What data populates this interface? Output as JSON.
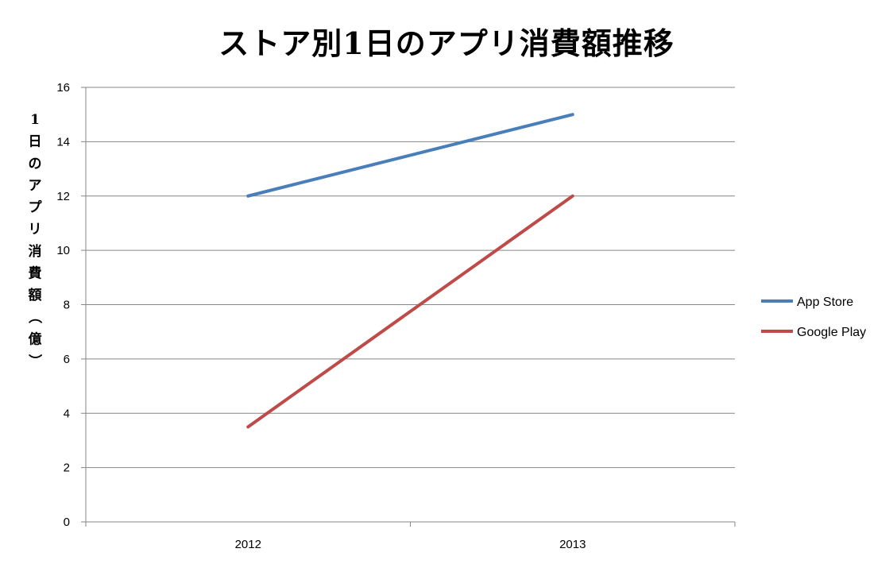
{
  "chart_data": {
    "type": "line",
    "title": "ストア別1日のアプリ消費額推移",
    "xlabel": "",
    "ylabel": "1日のアプリ消費額（億）",
    "categories": [
      "2012",
      "2013"
    ],
    "ylim": [
      0,
      16
    ],
    "yticks": [
      0,
      2,
      4,
      6,
      8,
      10,
      12,
      14,
      16
    ],
    "grid": true,
    "legend": "right",
    "series": [
      {
        "name": "App Store",
        "values": [
          12,
          15
        ],
        "color": "#4a7ebb"
      },
      {
        "name": "Google Play",
        "values": [
          3.5,
          12
        ],
        "color": "#be4b48"
      }
    ]
  }
}
